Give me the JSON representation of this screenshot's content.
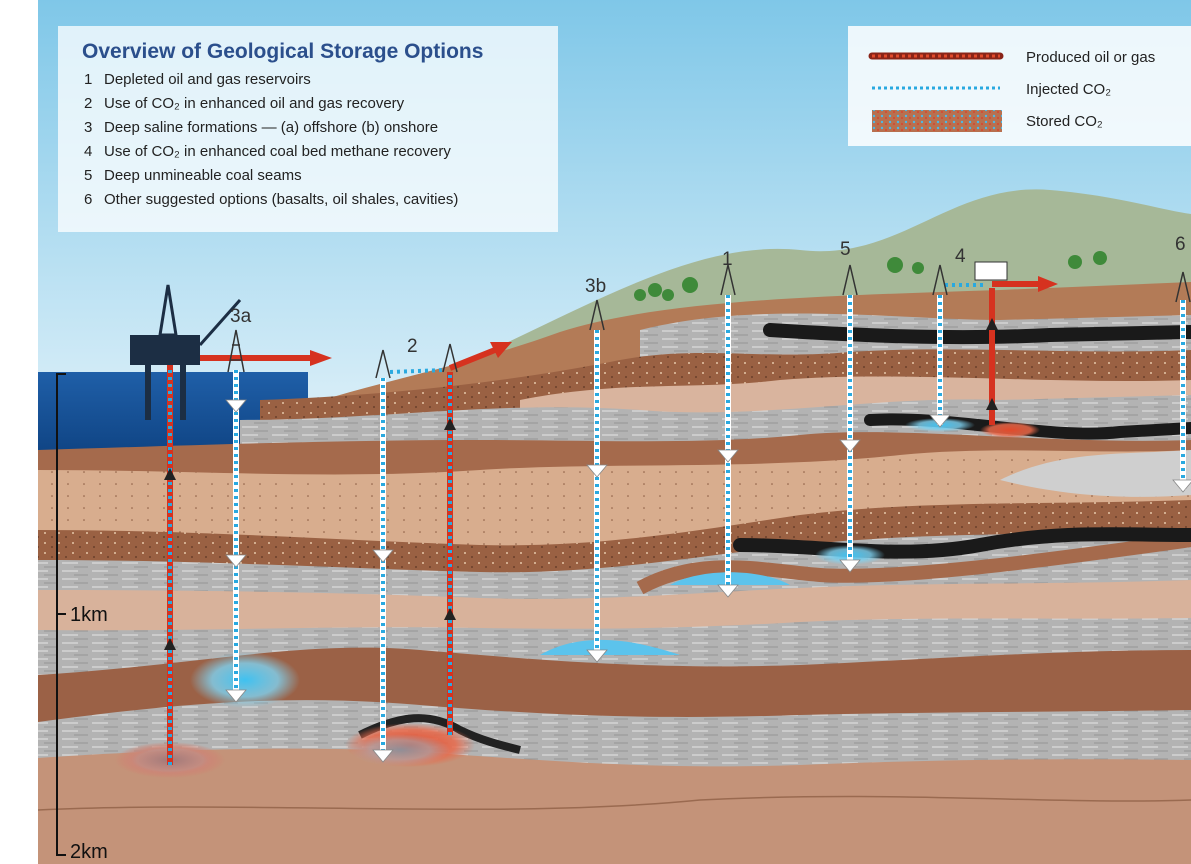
{
  "header": {
    "title": "Overview of Geological Storage Options"
  },
  "options": [
    {
      "number": "1",
      "label": "Depleted oil and gas reservoirs"
    },
    {
      "number": "2",
      "label": "Use of CO₂ in enhanced oil and gas recovery"
    },
    {
      "number": "3",
      "label": "Deep saline formations — (a) offshore (b) onshore"
    },
    {
      "number": "4",
      "label": "Use of CO₂ in enhanced coal bed methane recovery"
    },
    {
      "number": "5",
      "label": "Deep unmineable coal seams"
    },
    {
      "number": "6",
      "label": "Other suggested options (basalts, oil shales, cavities)"
    }
  ],
  "legend": [
    {
      "label": "Produced oil or gas"
    },
    {
      "label": "Injected CO₂"
    },
    {
      "label": "Stored CO₂"
    }
  ],
  "sites": [
    {
      "label": "3a"
    },
    {
      "label": "2"
    },
    {
      "label": "3b"
    },
    {
      "label": "1"
    },
    {
      "label": "5"
    },
    {
      "label": "4"
    },
    {
      "label": "6"
    }
  ],
  "scale": [
    {
      "label": "1km"
    },
    {
      "label": "2km"
    }
  ]
}
